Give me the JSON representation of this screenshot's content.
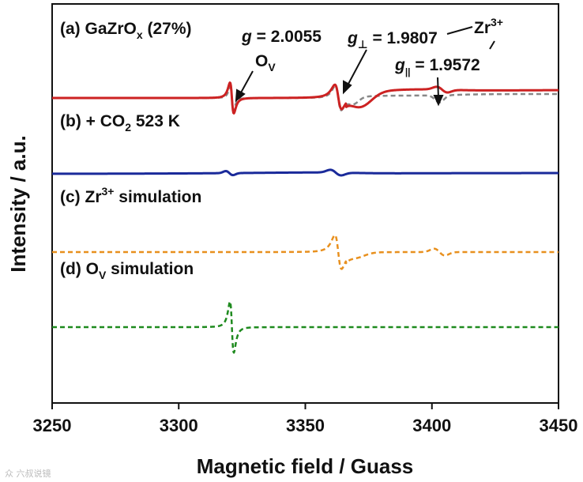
{
  "chart_data": {
    "type": "line",
    "xlabel": "Magnetic field / Guass",
    "ylabel": "Intensity / a.u.",
    "xlim": [
      3250,
      3450
    ],
    "xticks": [
      3250,
      3300,
      3350,
      3400,
      3450
    ],
    "xtick_labels": [
      "3250",
      "3300",
      "3350",
      "3400",
      "3450"
    ],
    "grid": false,
    "series": [
      {
        "name": "(a) GaZrOx (27%)",
        "label_prefix": "(a) GaZrO",
        "label_sub": "x",
        "label_suffix": " (27%)",
        "color": "#cc2222",
        "style": "solid",
        "panel": "a"
      },
      {
        "name": "(a) GaZrOx (27%) fit",
        "color": "#888888",
        "style": "dashed",
        "panel": "a"
      },
      {
        "name": "(b) + CO2 523 K",
        "label_prefix": "(b) + CO",
        "label_sub": "2",
        "label_suffix": " 523 K",
        "color": "#1a2a9a",
        "style": "solid",
        "panel": "b"
      },
      {
        "name": "(c) Zr3+ simulation",
        "label_prefix": "(c) Zr",
        "label_sup": "3+",
        "label_suffix": " simulation",
        "color": "#e8901e",
        "style": "dashed",
        "panel": "c"
      },
      {
        "name": "(d) OV simulation",
        "label_prefix": "(d) O",
        "label_sub": "V",
        "label_suffix": " simulation",
        "color": "#1e8a1e",
        "style": "dashed",
        "panel": "d"
      }
    ],
    "annotations": [
      {
        "id": "g-ov",
        "prefix": "g",
        "suffix": " = 2.0055"
      },
      {
        "id": "ov",
        "prefix": "O",
        "sub": "V"
      },
      {
        "id": "g-perp",
        "prefix": "g",
        "sub": "⊥",
        "suffix": " = 1.9807"
      },
      {
        "id": "g-par",
        "prefix": "g",
        "sub": "||",
        "suffix": " = 1.9572"
      },
      {
        "id": "zr3",
        "prefix": "Zr",
        "sup": "3+"
      }
    ]
  },
  "watermark": "众 六叔说镜"
}
